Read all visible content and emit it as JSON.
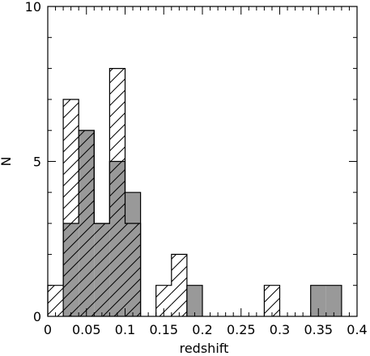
{
  "chart_data": {
    "type": "bar",
    "subtype": "overlaid-histogram",
    "title": "",
    "xlabel": "redshift",
    "ylabel": "N",
    "xlim": [
      0,
      0.4
    ],
    "ylim": [
      0,
      10
    ],
    "bin_width": 0.02,
    "x_ticks": [
      0,
      0.05,
      0.1,
      0.15,
      0.2,
      0.25,
      0.3,
      0.35,
      0.4
    ],
    "x_tick_labels": [
      "0",
      "0.05",
      "0.1",
      "0.15",
      "0.2",
      "0.25",
      "0.3",
      "0.35",
      "0.4"
    ],
    "y_ticks": [
      0,
      5,
      10
    ],
    "y_tick_labels": [
      "0",
      "5",
      "10"
    ],
    "grid": false,
    "legend": "none",
    "series": [
      {
        "style": "hatched",
        "color": "#000000",
        "bins": [
          {
            "x0": 0.0,
            "x1": 0.02,
            "count": 1
          },
          {
            "x0": 0.02,
            "x1": 0.04,
            "count": 7
          },
          {
            "x0": 0.04,
            "x1": 0.06,
            "count": 6
          },
          {
            "x0": 0.06,
            "x1": 0.08,
            "count": 3
          },
          {
            "x0": 0.08,
            "x1": 0.1,
            "count": 8
          },
          {
            "x0": 0.1,
            "x1": 0.12,
            "count": 3
          },
          {
            "x0": 0.14,
            "x1": 0.16,
            "count": 1
          },
          {
            "x0": 0.16,
            "x1": 0.18,
            "count": 2
          },
          {
            "x0": 0.28,
            "x1": 0.3,
            "count": 1
          }
        ]
      },
      {
        "style": "filled",
        "color": "#999999",
        "bins": [
          {
            "x0": 0.02,
            "x1": 0.04,
            "count": 3
          },
          {
            "x0": 0.04,
            "x1": 0.06,
            "count": 6
          },
          {
            "x0": 0.06,
            "x1": 0.08,
            "count": 3
          },
          {
            "x0": 0.08,
            "x1": 0.1,
            "count": 5
          },
          {
            "x0": 0.1,
            "x1": 0.12,
            "count": 4
          },
          {
            "x0": 0.18,
            "x1": 0.2,
            "count": 1
          },
          {
            "x0": 0.34,
            "x1": 0.36,
            "count": 1
          },
          {
            "x0": 0.36,
            "x1": 0.38,
            "count": 1
          }
        ]
      }
    ]
  }
}
